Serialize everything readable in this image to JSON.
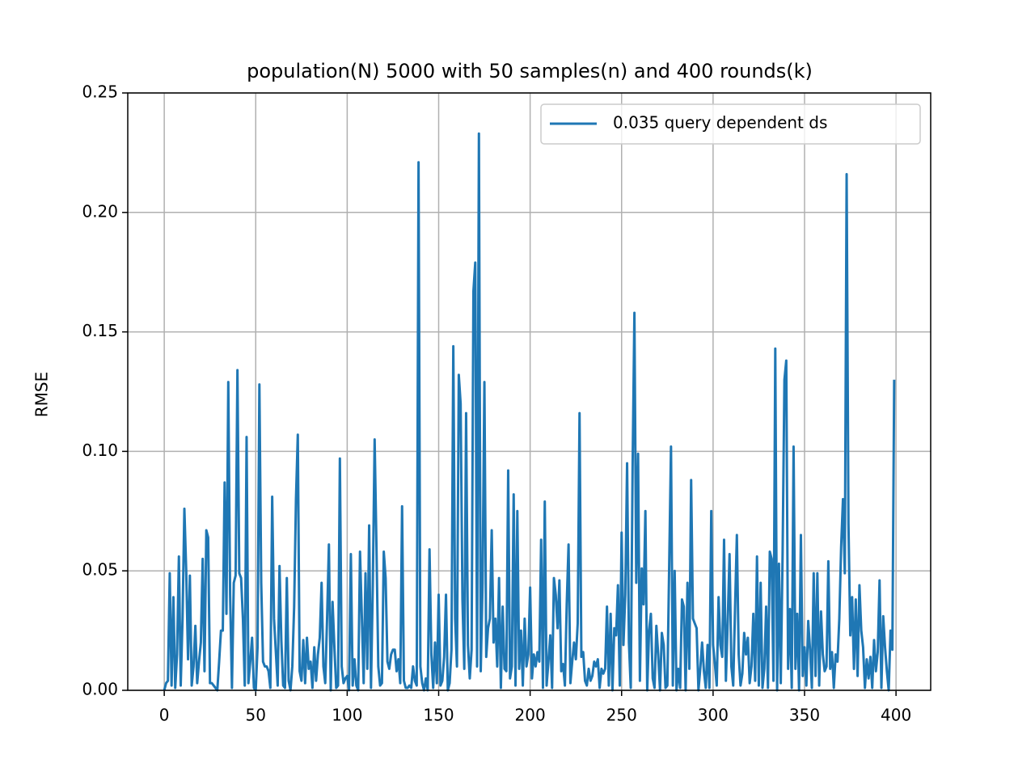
{
  "chart_data": {
    "type": "line",
    "title": "population(N) 5000 with 50 samples(n) and 400 rounds(k)",
    "y_label": "RMSE",
    "x": [
      0,
      1,
      2,
      3,
      4,
      5,
      6,
      7,
      8,
      9,
      10,
      11,
      12,
      13,
      14,
      15,
      16,
      17,
      18,
      19,
      20,
      21,
      22,
      23,
      24,
      25,
      26,
      27,
      28,
      29,
      30,
      31,
      32,
      33,
      34,
      35,
      36,
      37,
      38,
      39,
      40,
      41,
      42,
      43,
      44,
      45,
      46,
      47,
      48,
      49,
      50,
      51,
      52,
      53,
      54,
      55,
      56,
      57,
      58,
      59,
      60,
      61,
      62,
      63,
      64,
      65,
      66,
      67,
      68,
      69,
      70,
      71,
      72,
      73,
      74,
      75,
      76,
      77,
      78,
      79,
      80,
      81,
      82,
      83,
      84,
      85,
      86,
      87,
      88,
      89,
      90,
      91,
      92,
      93,
      94,
      95,
      96,
      97,
      98,
      99,
      100,
      101,
      102,
      103,
      104,
      105,
      106,
      107,
      108,
      109,
      110,
      111,
      112,
      113,
      114,
      115,
      116,
      117,
      118,
      119,
      120,
      121,
      122,
      123,
      124,
      125,
      126,
      127,
      128,
      129,
      130,
      131,
      132,
      133,
      134,
      135,
      136,
      137,
      138,
      139,
      140,
      141,
      142,
      143,
      144,
      145,
      146,
      147,
      148,
      149,
      150,
      151,
      152,
      153,
      154,
      155,
      156,
      157,
      158,
      159,
      160,
      161,
      162,
      163,
      164,
      165,
      166,
      167,
      168,
      169,
      170,
      171,
      172,
      173,
      174,
      175,
      176,
      177,
      178,
      179,
      180,
      181,
      182,
      183,
      184,
      185,
      186,
      187,
      188,
      189,
      190,
      191,
      192,
      193,
      194,
      195,
      196,
      197,
      198,
      199,
      200,
      201,
      202,
      203,
      204,
      205,
      206,
      207,
      208,
      209,
      210,
      211,
      212,
      213,
      214,
      215,
      216,
      217,
      218,
      219,
      220,
      221,
      222,
      223,
      224,
      225,
      226,
      227,
      228,
      229,
      230,
      231,
      232,
      233,
      234,
      235,
      236,
      237,
      238,
      239,
      240,
      241,
      242,
      243,
      244,
      245,
      246,
      247,
      248,
      249,
      250,
      251,
      252,
      253,
      254,
      255,
      256,
      257,
      258,
      259,
      260,
      261,
      262,
      263,
      264,
      265,
      266,
      267,
      268,
      269,
      270,
      271,
      272,
      273,
      274,
      275,
      276,
      277,
      278,
      279,
      280,
      281,
      282,
      283,
      284,
      285,
      286,
      287,
      288,
      289,
      290,
      291,
      292,
      293,
      294,
      295,
      296,
      297,
      298,
      299,
      300,
      301,
      302,
      303,
      304,
      305,
      306,
      307,
      308,
      309,
      310,
      311,
      312,
      313,
      314,
      315,
      316,
      317,
      318,
      319,
      320,
      321,
      322,
      323,
      324,
      325,
      326,
      327,
      328,
      329,
      330,
      331,
      332,
      333,
      334,
      335,
      336,
      337,
      338,
      339,
      340,
      341,
      342,
      343,
      344,
      345,
      346,
      347,
      348,
      349,
      350,
      351,
      352,
      353,
      354,
      355,
      356,
      357,
      358,
      359,
      360,
      361,
      362,
      363,
      364,
      365,
      366,
      367,
      368,
      369,
      370,
      371,
      372,
      373,
      374,
      375,
      376,
      377,
      378,
      379,
      380,
      381,
      382,
      383,
      384,
      385,
      386,
      387,
      388,
      389,
      390,
      391,
      392,
      393,
      394,
      395,
      396,
      397,
      398,
      399
    ],
    "series": [
      {
        "name": "0.035 query dependent ds",
        "color": "#1f77b4",
        "values": [
          0.0,
          0.003,
          0.004,
          0.049,
          0.002,
          0.039,
          0.001,
          0.015,
          0.056,
          0.002,
          0.03,
          0.076,
          0.05,
          0.013,
          0.048,
          0.002,
          0.01,
          0.027,
          0.003,
          0.012,
          0.02,
          0.055,
          0.008,
          0.067,
          0.064,
          0.003,
          0.003,
          0.002,
          0.001,
          0.0,
          0.012,
          0.025,
          0.025,
          0.087,
          0.032,
          0.129,
          0.04,
          0.001,
          0.045,
          0.048,
          0.134,
          0.049,
          0.047,
          0.03,
          0.002,
          0.106,
          0.003,
          0.012,
          0.022,
          0.001,
          0.0,
          0.018,
          0.128,
          0.045,
          0.012,
          0.01,
          0.01,
          0.008,
          0.001,
          0.081,
          0.03,
          0.016,
          0.002,
          0.052,
          0.021,
          0.002,
          0.001,
          0.047,
          0.004,
          0.0,
          0.01,
          0.035,
          0.08,
          0.107,
          0.008,
          0.004,
          0.021,
          0.003,
          0.022,
          0.009,
          0.012,
          0.001,
          0.018,
          0.004,
          0.015,
          0.022,
          0.045,
          0.01,
          0.003,
          0.03,
          0.061,
          0.0,
          0.037,
          0.018,
          0.001,
          0.002,
          0.097,
          0.01,
          0.003,
          0.005,
          0.006,
          0.0,
          0.057,
          0.002,
          0.013,
          0.002,
          0.0,
          0.058,
          0.031,
          0.003,
          0.049,
          0.009,
          0.069,
          0.001,
          0.044,
          0.105,
          0.06,
          0.01,
          0.002,
          0.003,
          0.058,
          0.047,
          0.012,
          0.009,
          0.015,
          0.017,
          0.017,
          0.008,
          0.013,
          0.003,
          0.077,
          0.004,
          0.001,
          0.001,
          0.002,
          0.001,
          0.01,
          0.004,
          0.002,
          0.221,
          0.01,
          0.003,
          0.0,
          0.005,
          0.0,
          0.059,
          0.015,
          0.001,
          0.02,
          0.003,
          0.04,
          0.002,
          0.004,
          0.014,
          0.04,
          0.0,
          0.003,
          0.017,
          0.144,
          0.03,
          0.01,
          0.132,
          0.12,
          0.038,
          0.009,
          0.116,
          0.019,
          0.005,
          0.017,
          0.167,
          0.179,
          0.01,
          0.233,
          0.008,
          0.045,
          0.129,
          0.014,
          0.026,
          0.03,
          0.067,
          0.02,
          0.03,
          0.01,
          0.047,
          0.001,
          0.035,
          0.009,
          0.008,
          0.092,
          0.005,
          0.01,
          0.082,
          0.002,
          0.075,
          0.009,
          0.025,
          0.002,
          0.03,
          0.01,
          0.015,
          0.043,
          0.005,
          0.015,
          0.01,
          0.016,
          0.012,
          0.063,
          0.001,
          0.079,
          0.002,
          0.012,
          0.023,
          0.001,
          0.047,
          0.04,
          0.026,
          0.046,
          0.008,
          0.011,
          0.002,
          0.036,
          0.061,
          0.003,
          0.012,
          0.02,
          0.013,
          0.028,
          0.116,
          0.014,
          0.016,
          0.004,
          0.002,
          0.009,
          0.004,
          0.006,
          0.012,
          0.01,
          0.013,
          0.001,
          0.009,
          0.007,
          0.009,
          0.035,
          0.002,
          0.032,
          0.0,
          0.026,
          0.023,
          0.044,
          0.002,
          0.066,
          0.019,
          0.04,
          0.095,
          0.02,
          0.001,
          0.093,
          0.158,
          0.045,
          0.099,
          0.004,
          0.051,
          0.036,
          0.075,
          0.0,
          0.025,
          0.032,
          0.005,
          0.001,
          0.027,
          0.015,
          0.0,
          0.024,
          0.019,
          0.001,
          0.002,
          0.052,
          0.102,
          0.002,
          0.05,
          0.0,
          0.009,
          0.001,
          0.038,
          0.035,
          0.0,
          0.045,
          0.009,
          0.088,
          0.03,
          0.028,
          0.026,
          0.0,
          0.009,
          0.02,
          0.008,
          0.001,
          0.019,
          0.001,
          0.075,
          0.019,
          0.011,
          0.002,
          0.039,
          0.019,
          0.014,
          0.063,
          0.004,
          0.029,
          0.057,
          0.01,
          0.002,
          0.034,
          0.065,
          0.015,
          0.002,
          0.007,
          0.024,
          0.015,
          0.022,
          0.003,
          0.01,
          0.032,
          0.004,
          0.056,
          0.002,
          0.045,
          0.001,
          0.009,
          0.035,
          0.001,
          0.058,
          0.055,
          0.004,
          0.143,
          0.0,
          0.053,
          0.003,
          0.057,
          0.13,
          0.138,
          0.009,
          0.034,
          0.001,
          0.102,
          0.009,
          0.032,
          0.0,
          0.065,
          0.006,
          0.018,
          0.002,
          0.029,
          0.017,
          0.001,
          0.049,
          0.006,
          0.049,
          0.002,
          0.033,
          0.015,
          0.008,
          0.01,
          0.054,
          0.009,
          0.016,
          0.001,
          0.015,
          0.012,
          0.03,
          0.06,
          0.08,
          0.049,
          0.216,
          0.07,
          0.023,
          0.039,
          0.009,
          0.038,
          0.006,
          0.044,
          0.025,
          0.018,
          0.001,
          0.013,
          0.005,
          0.014,
          0.001,
          0.021,
          0.008,
          0.016,
          0.046,
          0.001,
          0.031,
          0.018,
          0.008,
          0.0,
          0.025,
          0.017,
          0.13
        ]
      }
    ],
    "xlim": [
      -19.95,
      418.95
    ],
    "ylim": [
      0,
      0.25
    ],
    "xticks": [
      0,
      50,
      100,
      150,
      200,
      250,
      300,
      350,
      400
    ],
    "yticks": [
      {
        "value": 0,
        "label": "0.00"
      },
      {
        "value": 0.05,
        "label": "0.05"
      },
      {
        "value": 0.1,
        "label": "0.10"
      },
      {
        "value": 0.15,
        "label": "0.15"
      },
      {
        "value": 0.2,
        "label": "0.20"
      },
      {
        "value": 0.25,
        "label": "0.25"
      }
    ],
    "grid": true,
    "legend": "upper right"
  }
}
